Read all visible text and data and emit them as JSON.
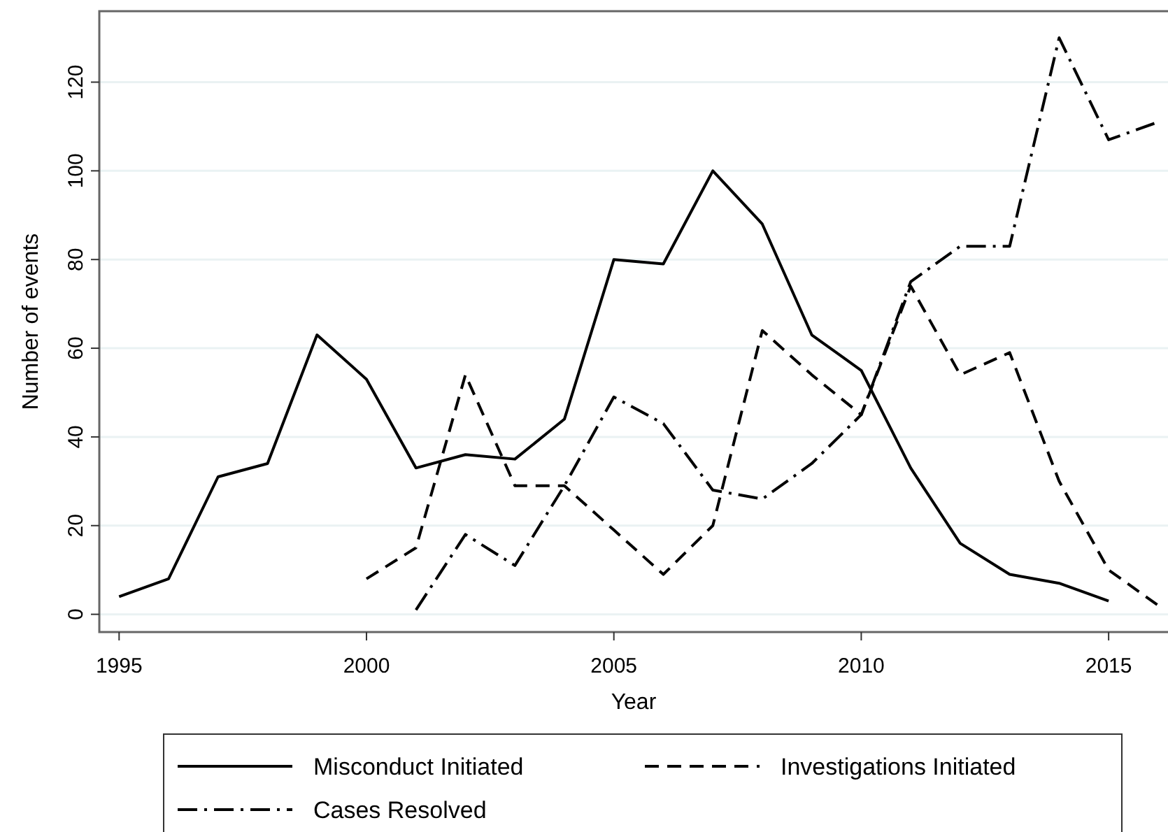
{
  "chart_data": {
    "type": "line",
    "xlabel": "Year",
    "ylabel": "Number of events",
    "xlim": [
      1994.6,
      2016.2
    ],
    "xticks": [
      1995,
      2000,
      2005,
      2010,
      2015
    ],
    "ylim": [
      -4,
      136
    ],
    "yticks": [
      0,
      20,
      40,
      60,
      80,
      100,
      120
    ],
    "grid": "y",
    "legend": "bottom",
    "series": [
      {
        "name": "Misconduct Initiated",
        "color": "#000000",
        "line_style": "solid",
        "x": [
          1995,
          1996,
          1997,
          1998,
          1999,
          2000,
          2001,
          2002,
          2003,
          2004,
          2005,
          2006,
          2007,
          2008,
          2009,
          2010,
          2011,
          2012,
          2013,
          2014,
          2015
        ],
        "values": [
          4,
          8,
          31,
          34,
          63,
          53,
          33,
          36,
          35,
          44,
          80,
          79,
          100,
          88,
          63,
          55,
          33,
          16,
          9,
          7,
          3
        ]
      },
      {
        "name": "Investigations Initiated",
        "color": "#000000",
        "line_style": "dashed",
        "x": [
          2000,
          2001,
          2002,
          2003,
          2004,
          2005,
          2006,
          2007,
          2008,
          2009,
          2010,
          2011,
          2012,
          2013,
          2014,
          2015,
          2016
        ],
        "values": [
          8,
          15,
          54,
          29,
          29,
          19,
          9,
          20,
          64,
          54,
          45,
          74,
          54,
          59,
          30,
          10,
          2
        ]
      },
      {
        "name": "Cases Resolved",
        "color": "#000000",
        "line_style": "dashdot",
        "x": [
          2001,
          2002,
          2003,
          2004,
          2005,
          2006,
          2007,
          2008,
          2009,
          2010,
          2011,
          2012,
          2013,
          2014,
          2015,
          2016
        ],
        "values": [
          1,
          18,
          11,
          29,
          49,
          43,
          28,
          26,
          34,
          45,
          75,
          83,
          83,
          130,
          107,
          111
        ]
      }
    ]
  }
}
